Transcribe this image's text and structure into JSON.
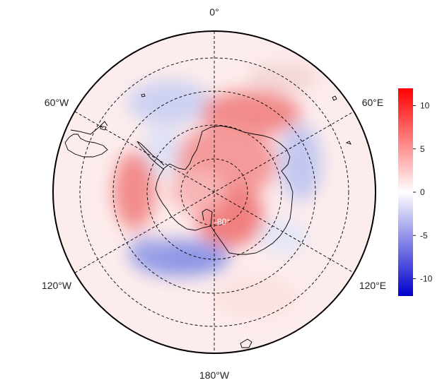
{
  "map": {
    "projection": "south-polar-stereographic",
    "center_latitude_label": "-80°",
    "longitude_labels": {
      "top": "0°",
      "upper_left": "60°W",
      "upper_right": "60°E",
      "lower_left": "120°W",
      "lower_right": "120°E",
      "bottom": "180°W"
    },
    "graticule_style": "dashed",
    "graticule_latitudes": [
      -80,
      -70,
      -60,
      -50,
      -40
    ],
    "graticule_meridians_deg": [
      0,
      60,
      120,
      180,
      240,
      300
    ]
  },
  "colorbar": {
    "min": -12,
    "max": 12,
    "ticks": [
      10,
      5,
      0,
      -5,
      -10
    ],
    "tick_labels": [
      "10",
      "5",
      "0",
      "-5",
      "-10"
    ],
    "low_color": "#0000cc",
    "mid_color": "#ffffff",
    "high_color": "#ff0000"
  },
  "chart_data": {
    "type": "heatmap",
    "description_units": "anomaly values on the colorbar scale",
    "regions": [
      {
        "name": "east-antarctic-plateau-positive",
        "value": 7
      },
      {
        "name": "west-antarctica-positive",
        "value": 6
      },
      {
        "name": "antarctic-peninsula-west-positive",
        "value": 8
      },
      {
        "name": "amundsen-bellingshausen-negative",
        "value": -6
      },
      {
        "name": "indian-ocean-sector-negative",
        "value": -4
      },
      {
        "name": "south-atlantic-negative",
        "value": -3
      },
      {
        "name": "outer-mid-latitudes-weak-positive",
        "value": 2
      }
    ]
  },
  "colors": {
    "outline": "#000000",
    "coastline": "#000000",
    "text": "#222222"
  }
}
